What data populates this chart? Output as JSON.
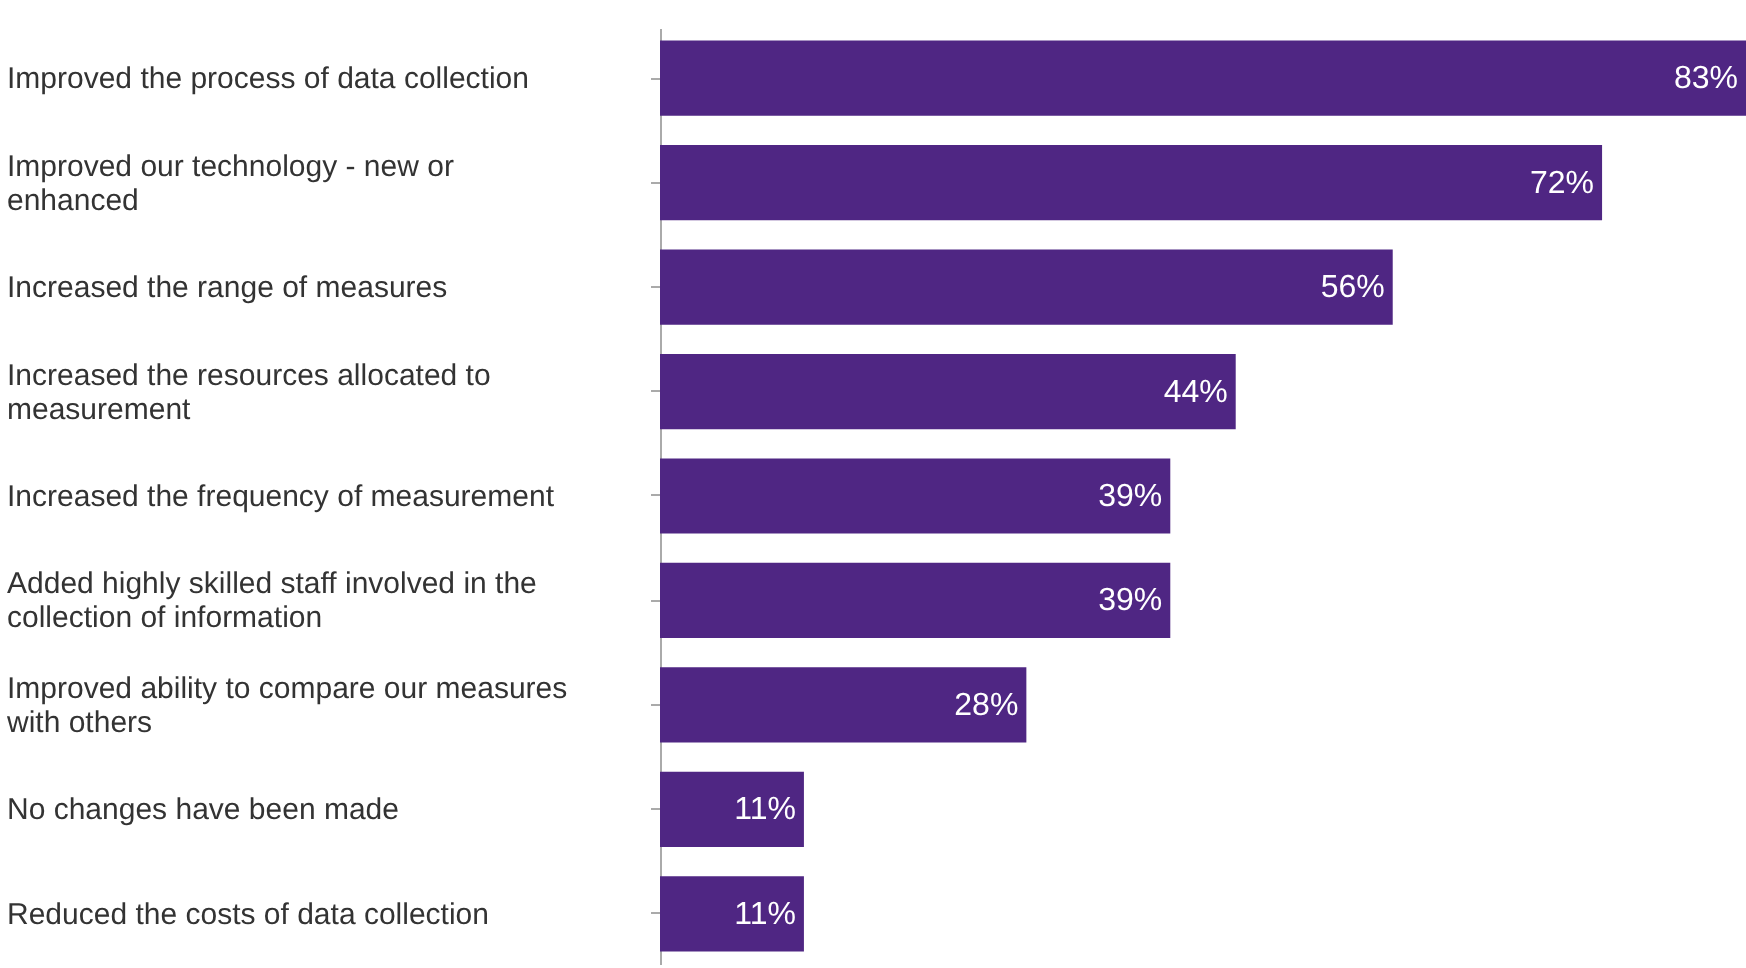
{
  "chart_data": {
    "type": "bar",
    "orientation": "horizontal",
    "categories": [
      "Improved the process of data collection",
      "Improved our technology - new or\nenhanced",
      "Increased the range of measures",
      "Increased the resources allocated to\nmeasurement",
      "Increased the frequency of measurement",
      "Added highly skilled staff involved in the\ncollection of information",
      "Improved ability to compare our measures\nwith others",
      "No changes have been made",
      "Reduced the costs of data collection"
    ],
    "values": [
      83,
      72,
      56,
      44,
      39,
      39,
      28,
      11,
      11
    ],
    "value_labels": [
      "83%",
      "72%",
      "56%",
      "44%",
      "39%",
      "39%",
      "28%",
      "11%",
      "11%"
    ],
    "color": "#4f2683",
    "xlim": [
      0,
      83
    ],
    "tick_labels": "y",
    "grid": false
  }
}
